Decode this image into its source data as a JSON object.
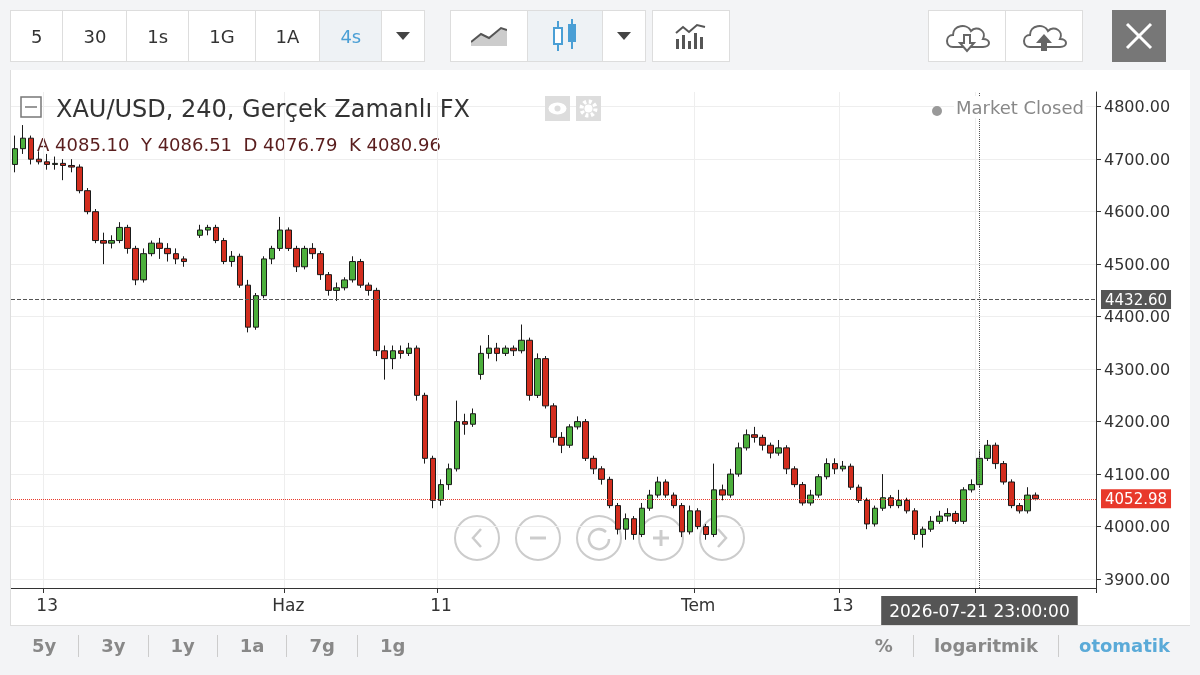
{
  "chart_data": {
    "type": "candlestick",
    "title": "XAU/USD, 240, Gerçek Zamanlı FX",
    "annotations": [
      "Market Closed",
      "A 4085.10  Y 4086.51  D 4076.79  K 4080.96",
      "5",
      "30",
      "1s",
      "1G",
      "1A",
      "4s",
      "5y",
      "3y",
      "1y",
      "1a",
      "7g",
      "1g",
      "%",
      "logaritmik",
      "otomatik"
    ],
    "categories": [
      null,
      null,
      null,
      null,
      "13",
      null,
      null,
      null,
      null,
      null,
      null,
      null,
      null,
      null,
      null,
      null,
      null,
      null,
      null,
      null,
      null,
      null,
      null,
      null,
      null,
      null,
      null,
      null,
      null,
      null,
      null,
      null,
      null,
      null,
      "Haz",
      null,
      null,
      null,
      null,
      null,
      null,
      null,
      null,
      null,
      null,
      null,
      null,
      null,
      null,
      null,
      null,
      null,
      null,
      "11",
      null,
      null,
      null,
      null,
      null,
      null,
      null,
      null,
      null,
      null,
      null,
      null,
      null,
      null,
      null,
      null,
      null,
      null,
      null,
      null,
      null,
      null,
      null,
      null,
      null,
      null,
      null,
      null,
      null,
      null,
      null,
      "Tem",
      null,
      null,
      null,
      null,
      null,
      null,
      null,
      null,
      null,
      null,
      null,
      null,
      null,
      null,
      null,
      null,
      null,
      "13",
      null,
      null,
      null,
      null,
      null,
      null,
      null,
      null,
      null,
      null,
      null,
      null,
      null,
      null,
      null,
      null,
      "2026-07-21 23:00:00",
      null,
      null,
      null,
      null,
      null,
      null,
      null,
      null,
      null,
      null,
      null,
      null,
      null,
      null
    ],
    "ohlc": [
      [
        4690,
        4745,
        4675,
        4720
      ],
      [
        4720,
        4765,
        4710,
        4740
      ],
      [
        4740,
        4745,
        4690,
        4700
      ],
      [
        4700,
        4715,
        4690,
        4695
      ],
      [
        4695,
        4710,
        4680,
        4690
      ],
      [
        4690,
        4705,
        4680,
        4692
      ],
      [
        4692,
        4700,
        4660,
        4688
      ],
      [
        4688,
        4700,
        4675,
        4685
      ],
      [
        4685,
        4690,
        4635,
        4640
      ],
      [
        4640,
        4645,
        4595,
        4600
      ],
      [
        4600,
        4605,
        4540,
        4545
      ],
      [
        4545,
        4560,
        4500,
        4540
      ],
      [
        4540,
        4555,
        4530,
        4545
      ],
      [
        4545,
        4580,
        4540,
        4570
      ],
      [
        4570,
        4575,
        4520,
        4530
      ],
      [
        4530,
        4535,
        4460,
        4470
      ],
      [
        4470,
        4530,
        4465,
        4520
      ],
      [
        4520,
        4545,
        4515,
        4540
      ],
      [
        4540,
        4550,
        4510,
        4530
      ],
      [
        4530,
        4540,
        4505,
        4520
      ],
      [
        4520,
        4530,
        4500,
        4510
      ],
      [
        4510,
        4515,
        4495,
        4505
      ],
      null,
      [
        4555,
        4575,
        4550,
        4565
      ],
      [
        4565,
        4575,
        4555,
        4570
      ],
      [
        4570,
        4575,
        4540,
        4545
      ],
      [
        4545,
        4550,
        4500,
        4505
      ],
      [
        4505,
        4525,
        4495,
        4515
      ],
      [
        4515,
        4520,
        4455,
        4460
      ],
      [
        4460,
        4470,
        4370,
        4380
      ],
      [
        4380,
        4445,
        4375,
        4440
      ],
      [
        4440,
        4515,
        4435,
        4510
      ],
      [
        4510,
        4535,
        4500,
        4530
      ],
      [
        4530,
        4590,
        4525,
        4565
      ],
      [
        4565,
        4570,
        4525,
        4530
      ],
      [
        4530,
        4535,
        4485,
        4495
      ],
      [
        4495,
        4535,
        4490,
        4530
      ],
      [
        4530,
        4540,
        4510,
        4520
      ],
      [
        4520,
        4525,
        4470,
        4480
      ],
      [
        4480,
        4485,
        4440,
        4450
      ],
      [
        4450,
        4465,
        4430,
        4455
      ],
      [
        4455,
        4475,
        4450,
        4470
      ],
      [
        4470,
        4515,
        4465,
        4505
      ],
      [
        4505,
        4510,
        4455,
        4460
      ],
      [
        4460,
        4465,
        4440,
        4450
      ],
      [
        4450,
        4455,
        4325,
        4335
      ],
      [
        4335,
        4345,
        4280,
        4320
      ],
      [
        4320,
        4345,
        4300,
        4335
      ],
      [
        4335,
        4345,
        4320,
        4330
      ],
      [
        4330,
        4350,
        4325,
        4340
      ],
      [
        4340,
        4345,
        4240,
        4250
      ],
      [
        4250,
        4255,
        4120,
        4130
      ],
      [
        4130,
        4135,
        4035,
        4050
      ],
      [
        4050,
        4090,
        4040,
        4080
      ],
      [
        4080,
        4120,
        4070,
        4110
      ],
      [
        4110,
        4240,
        4105,
        4200
      ],
      [
        4200,
        4215,
        4175,
        4195
      ],
      [
        4195,
        4225,
        4190,
        4215
      ],
      [
        4290,
        4345,
        4280,
        4330
      ],
      [
        4330,
        4365,
        4320,
        4340
      ],
      [
        4340,
        4350,
        4315,
        4330
      ],
      [
        4330,
        4345,
        4325,
        4340
      ],
      [
        4340,
        4345,
        4325,
        4335
      ],
      [
        4335,
        4385,
        4330,
        4355
      ],
      [
        4355,
        4360,
        4240,
        4250
      ],
      [
        4250,
        4330,
        4245,
        4320
      ],
      [
        4320,
        4325,
        4225,
        4230
      ],
      [
        4230,
        4235,
        4160,
        4170
      ],
      [
        4170,
        4180,
        4140,
        4155
      ],
      [
        4155,
        4195,
        4150,
        4190
      ],
      [
        4190,
        4210,
        4185,
        4200
      ],
      [
        4200,
        4205,
        4125,
        4130
      ],
      [
        4130,
        4135,
        4100,
        4110
      ],
      [
        4110,
        4115,
        4080,
        4090
      ],
      [
        4090,
        4095,
        4035,
        4040
      ],
      [
        4040,
        4045,
        3985,
        3995
      ],
      [
        3995,
        4025,
        3975,
        4015
      ],
      [
        4015,
        4020,
        3975,
        3985
      ],
      [
        3985,
        4045,
        3980,
        4035
      ],
      [
        4035,
        4070,
        4030,
        4060
      ],
      [
        4060,
        4095,
        4055,
        4085
      ],
      [
        4085,
        4090,
        4055,
        4060
      ],
      [
        4060,
        4065,
        4035,
        4040
      ],
      [
        4040,
        4045,
        3980,
        3990
      ],
      [
        3990,
        4040,
        3985,
        4030
      ],
      [
        4030,
        4035,
        3995,
        4000
      ],
      [
        4000,
        4005,
        3975,
        3985
      ],
      [
        3985,
        4120,
        3980,
        4070
      ],
      [
        4070,
        4080,
        4050,
        4060
      ],
      [
        4060,
        4110,
        4055,
        4100
      ],
      [
        4100,
        4160,
        4095,
        4150
      ],
      [
        4150,
        4185,
        4145,
        4175
      ],
      [
        4175,
        4190,
        4160,
        4170
      ],
      [
        4170,
        4175,
        4145,
        4155
      ],
      [
        4155,
        4160,
        4130,
        4140
      ],
      [
        4140,
        4165,
        4135,
        4150
      ],
      [
        4150,
        4155,
        4100,
        4110
      ],
      [
        4110,
        4115,
        4075,
        4080
      ],
      [
        4080,
        4085,
        4040,
        4045
      ],
      [
        4045,
        4070,
        4040,
        4060
      ],
      [
        4060,
        4100,
        4055,
        4095
      ],
      [
        4095,
        4130,
        4090,
        4120
      ],
      [
        4120,
        4130,
        4100,
        4110
      ],
      [
        4110,
        4125,
        4105,
        4115
      ],
      [
        4115,
        4120,
        4070,
        4075
      ],
      [
        4075,
        4080,
        4045,
        4050
      ],
      [
        4050,
        4055,
        3995,
        4005
      ],
      [
        4005,
        4040,
        4000,
        4035
      ],
      [
        4035,
        4100,
        4030,
        4055
      ],
      [
        4055,
        4060,
        4035,
        4040
      ],
      [
        4040,
        4070,
        4035,
        4050
      ],
      [
        4050,
        4055,
        4025,
        4030
      ],
      [
        4030,
        4035,
        3975,
        3985
      ],
      [
        3985,
        4000,
        3960,
        3995
      ],
      [
        3995,
        4020,
        3990,
        4010
      ],
      [
        4010,
        4030,
        4005,
        4020
      ],
      [
        4020,
        4035,
        4010,
        4025
      ],
      [
        4025,
        4030,
        4005,
        4010
      ],
      [
        4010,
        4075,
        4005,
        4070
      ],
      [
        4070,
        4090,
        4065,
        4080
      ],
      [
        4080,
        4145,
        4075,
        4130
      ],
      [
        4130,
        4165,
        4125,
        4155
      ],
      [
        4155,
        4160,
        4110,
        4120
      ],
      [
        4120,
        4125,
        4080,
        4085
      ],
      [
        4085,
        4090,
        4035,
        4040
      ],
      [
        4040,
        4045,
        4025,
        4030
      ],
      [
        4030,
        4075,
        4025,
        4060
      ],
      [
        4060,
        4065,
        4050,
        4053
      ],
      null,
      null,
      null,
      null,
      null,
      null,
      null
    ],
    "colors": [
      "#4caf3c",
      "#4caf3c",
      "#d22d1e",
      "#d22d1e",
      "#d22d1e",
      "#4caf3c",
      "#d22d1e",
      "#d22d1e",
      "#d22d1e",
      "#d22d1e",
      "#d22d1e",
      "#d22d1e",
      "#4caf3c",
      "#4caf3c",
      "#d22d1e",
      "#d22d1e",
      "#4caf3c",
      "#4caf3c",
      "#d22d1e",
      "#d22d1e",
      "#d22d1e",
      "#d22d1e",
      null,
      "#4caf3c",
      "#4caf3c",
      "#d22d1e",
      "#d22d1e",
      "#4caf3c",
      "#d22d1e",
      "#d22d1e",
      "#4caf3c",
      "#4caf3c",
      "#4caf3c",
      "#4caf3c",
      "#d22d1e",
      "#d22d1e",
      "#4caf3c",
      "#d22d1e",
      "#d22d1e",
      "#d22d1e",
      "#4caf3c",
      "#4caf3c",
      "#4caf3c",
      "#d22d1e",
      "#d22d1e",
      "#d22d1e",
      "#d22d1e",
      "#4caf3c",
      "#d22d1e",
      "#4caf3c",
      "#d22d1e",
      "#d22d1e",
      "#d22d1e",
      "#4caf3c",
      "#4caf3c",
      "#4caf3c",
      "#d22d1e",
      "#4caf3c",
      "#4caf3c",
      "#4caf3c",
      "#d22d1e",
      "#4caf3c",
      "#d22d1e",
      "#4caf3c",
      "#d22d1e",
      "#4caf3c",
      "#d22d1e",
      "#d22d1e",
      "#d22d1e",
      "#4caf3c",
      "#4caf3c",
      "#d22d1e",
      "#d22d1e",
      "#d22d1e",
      "#d22d1e",
      "#d22d1e",
      "#4caf3c",
      "#d22d1e",
      "#4caf3c",
      "#4caf3c",
      "#4caf3c",
      "#d22d1e",
      "#d22d1e",
      "#d22d1e",
      "#4caf3c",
      "#d22d1e",
      "#d22d1e",
      "#4caf3c",
      "#d22d1e",
      "#4caf3c",
      "#4caf3c",
      "#4caf3c",
      "#d22d1e",
      "#d22d1e",
      "#d22d1e",
      "#4caf3c",
      "#d22d1e",
      "#d22d1e",
      "#d22d1e",
      "#4caf3c",
      "#4caf3c",
      "#4caf3c",
      "#d22d1e",
      "#4caf3c",
      "#d22d1e",
      "#d22d1e",
      "#d22d1e",
      "#4caf3c",
      "#4caf3c",
      "#d22d1e",
      "#4caf3c",
      "#d22d1e",
      "#d22d1e",
      "#4caf3c",
      "#4caf3c",
      "#4caf3c",
      "#4caf3c",
      "#d22d1e",
      "#4caf3c",
      "#4caf3c",
      "#4caf3c",
      "#4caf3c",
      "#d22d1e",
      "#d22d1e",
      "#d22d1e",
      "#d22d1e",
      "#4caf3c",
      "#d22d1e",
      null,
      null,
      null,
      null,
      null,
      null,
      null
    ],
    "ylim": [
      3883,
      4828
    ],
    "yticks": [
      {
        "value": 3900,
        "label": "3900.00"
      },
      {
        "value": 4000,
        "label": "4000.00"
      },
      {
        "value": 4100,
        "label": "4100.00"
      },
      {
        "value": 4200,
        "label": "4200.00"
      },
      {
        "value": 4300,
        "label": "4300.00"
      },
      {
        "value": 4400,
        "label": "4400.00"
      },
      {
        "value": 4500,
        "label": "4500.00"
      },
      {
        "value": 4600,
        "label": "4600.00"
      },
      {
        "value": 4700,
        "label": "4700.00"
      },
      {
        "value": 4800,
        "label": "4800.00"
      }
    ],
    "ref_lines": [
      {
        "axis": "y",
        "value": 4432.6,
        "label": "4432.60",
        "color": "#555555",
        "line_style": "dashed"
      },
      {
        "axis": "y",
        "value": 4052.98,
        "label": "4052.98",
        "color": "#e8392b",
        "line_style": "dotted"
      },
      {
        "axis": "x",
        "value": "2026-07-21 23:00:00",
        "color": "#555555",
        "line_style": "dotted"
      }
    ],
    "grid": true
  }
}
